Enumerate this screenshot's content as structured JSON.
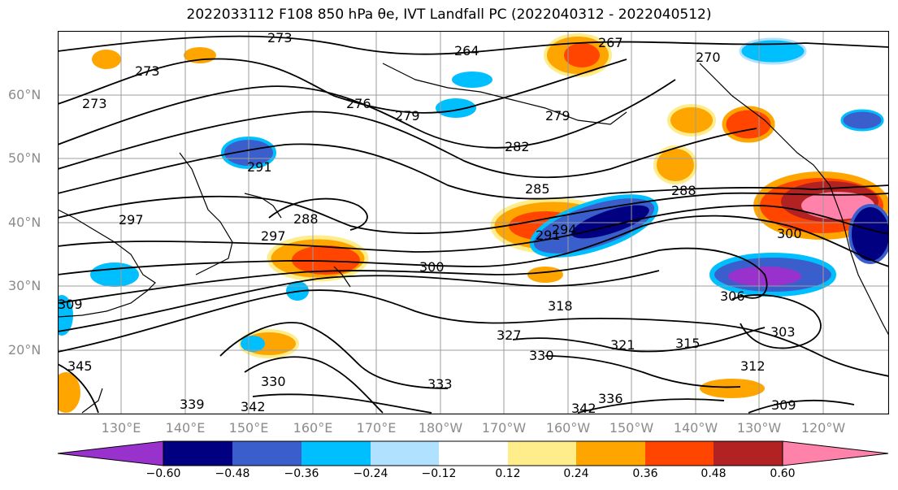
{
  "title": "2022033112 F108 850 hPa θe, IVT Landfall PC (2022040312 - 2022040512)",
  "map": {
    "lat_labels": [
      "60°N",
      "50°N",
      "40°N",
      "30°N",
      "20°N"
    ],
    "lon_labels": [
      "130°E",
      "140°E",
      "150°E",
      "160°E",
      "170°E",
      "180°W",
      "170°W",
      "160°W",
      "150°W",
      "140°W",
      "130°W",
      "120°W"
    ],
    "contour_labels": [
      "273",
      "267",
      "270",
      "264",
      "273",
      "273",
      "276",
      "279",
      "279",
      "282",
      "291",
      "285",
      "288",
      "288",
      "291",
      "294",
      "297",
      "297",
      "300",
      "300",
      "306",
      "303",
      "309",
      "318",
      "315",
      "312",
      "321",
      "327",
      "330",
      "330",
      "333",
      "336",
      "339",
      "342",
      "342",
      "345",
      "309"
    ],
    "land_color": "#000000"
  },
  "colorbar": {
    "colors": [
      "#9932cc",
      "#000080",
      "#3a5fcd",
      "#00bfff",
      "#b0e2ff",
      "#ffffff",
      "#ffec8b",
      "#ffa500",
      "#ff4500",
      "#b22222",
      "#ff82ab"
    ],
    "ticks": [
      "−0.60",
      "−0.48",
      "−0.36",
      "−0.24",
      "−0.12",
      "0.12",
      "0.24",
      "0.36",
      "0.48",
      "0.60"
    ]
  }
}
